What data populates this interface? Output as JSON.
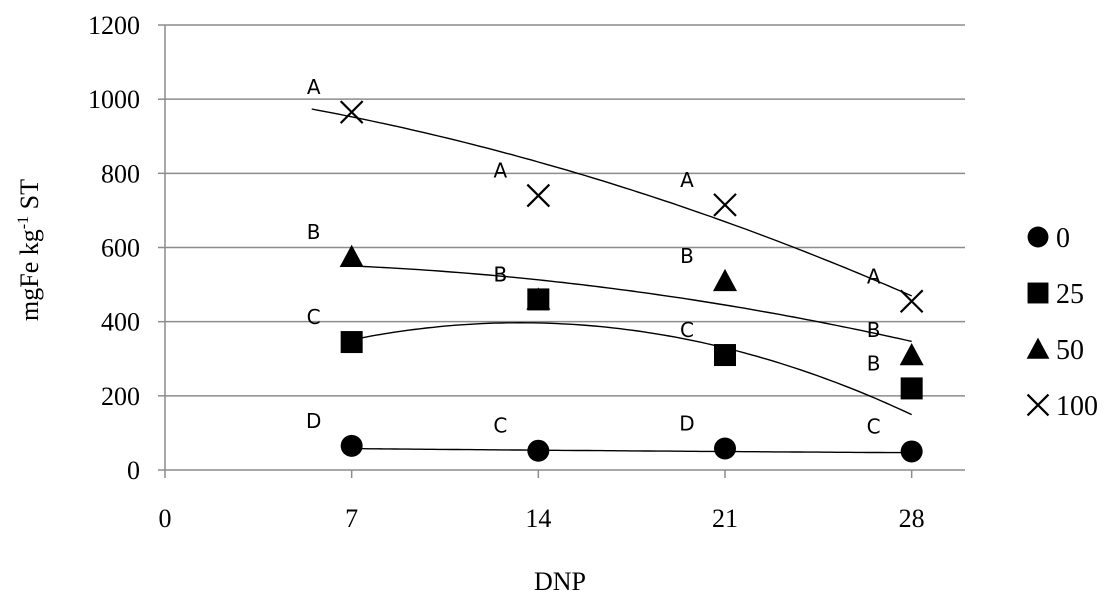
{
  "chart_data": {
    "type": "scatter",
    "title": "",
    "xlabel": "DNP",
    "ylabel": "mgFe kg-1 ST",
    "ylabel_main": "mgFe kg",
    "ylabel_sup": "-1",
    "ylabel_tail": " ST",
    "xlim": [
      0,
      30
    ],
    "ylim": [
      0,
      1200
    ],
    "x_ticks": [
      "0",
      "7",
      "14",
      "21",
      "28"
    ],
    "x_tick_values": [
      0,
      7,
      14,
      21,
      28
    ],
    "y_ticks": [
      "0",
      "200",
      "400",
      "600",
      "800",
      "1000",
      "1200"
    ],
    "y_tick_values": [
      0,
      200,
      400,
      600,
      800,
      1000,
      1200
    ],
    "grid": "horizontal",
    "legend_position": "right",
    "series": [
      {
        "name": "0",
        "marker": "circle",
        "x": [
          7,
          14,
          21,
          28
        ],
        "values": [
          65,
          52,
          58,
          50
        ],
        "sig_labels": [
          "D",
          "C",
          "D",
          "C"
        ],
        "trend": {
          "kind": "quadratic",
          "x_range": [
            7,
            28
          ],
          "coef": [
            62.3,
            -0.7,
            0.005
          ]
        }
      },
      {
        "name": "25",
        "marker": "square",
        "x": [
          7,
          14,
          21,
          28
        ],
        "values": [
          345,
          460,
          310,
          220
        ],
        "sig_labels": [
          "C",
          "B",
          "C",
          "B"
        ],
        "trend": {
          "kind": "quadratic",
          "x_range": [
            7,
            28
          ],
          "coef": [
            193.0,
            30.64,
            -1.15
          ]
        }
      },
      {
        "name": "50",
        "marker": "triangle",
        "x": [
          7,
          14,
          21,
          28
        ],
        "values": [
          575,
          460,
          510,
          310
        ],
        "sig_labels": [
          "B",
          "B",
          "B",
          "B"
        ],
        "trend": {
          "kind": "quadratic",
          "x_range": [
            7,
            28
          ],
          "coef": [
            557.3,
            1.16,
            -0.31
          ]
        }
      },
      {
        "name": "100",
        "marker": "cross",
        "x": [
          7,
          14,
          21,
          28
        ],
        "values": [
          965,
          740,
          715,
          455
        ],
        "sig_labels": [
          "A",
          "A",
          "A",
          "A"
        ],
        "trend": {
          "kind": "quadratic",
          "x_range": [
            5.5,
            28
          ],
          "coef": [
            1035.0,
            -9.0,
            -0.4
          ]
        }
      }
    ]
  }
}
